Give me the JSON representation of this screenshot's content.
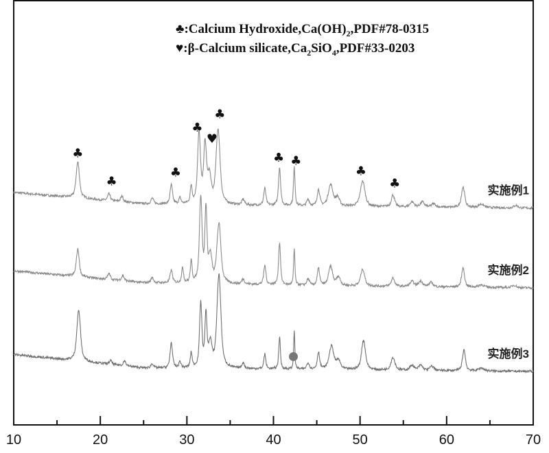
{
  "chart_data": {
    "type": "line",
    "title": "",
    "xlabel": "",
    "ylabel": "",
    "xlim": [
      10,
      70
    ],
    "ylim": [
      0,
      100
    ],
    "x_ticks": [
      10,
      20,
      30,
      40,
      50,
      60,
      70
    ],
    "x_minor_ticks": [
      15,
      25,
      35,
      45,
      55,
      65
    ],
    "y_ticks_shown": false,
    "grid": false,
    "line_color": "#8a8a8a",
    "legend": {
      "placement": "top-right",
      "entries": [
        {
          "symbol": "♣",
          "text": ":Calcium Hydroxide,Ca(OH)",
          "sub": "2",
          "text2": ",PDF#78-0315"
        },
        {
          "symbol": "♥",
          "text": ":β-Calcium silicate,Ca",
          "sub": "2",
          "text2": "SiO",
          "sub2": "4",
          "text3": ",PDF#33-0203"
        }
      ]
    },
    "series": [
      {
        "name": "实施例1",
        "baseline": [
          [
            10,
            54.8
          ],
          [
            25,
            52.1
          ],
          [
            45,
            51.5
          ],
          [
            70,
            51.1
          ]
        ],
        "peaks": [
          [
            17.4,
            8.5,
            0.25
          ],
          [
            21.0,
            1.6,
            0.2
          ],
          [
            22.5,
            1.3,
            0.2
          ],
          [
            26.0,
            1.3,
            0.2
          ],
          [
            28.2,
            4.5,
            0.18
          ],
          [
            29.2,
            1.4,
            0.15
          ],
          [
            30.5,
            4.0,
            0.14
          ],
          [
            31.4,
            16.5,
            0.22
          ],
          [
            32.1,
            13.5,
            0.22
          ],
          [
            32.6,
            6,
            0.25
          ],
          [
            33.6,
            17.5,
            0.3
          ],
          [
            36.5,
            1.3,
            0.2
          ],
          [
            39.0,
            4.0,
            0.17
          ],
          [
            40.7,
            9.0,
            0.16
          ],
          [
            42.4,
            9.0,
            0.12
          ],
          [
            44.0,
            1.5,
            0.2
          ],
          [
            45.2,
            3.8,
            0.2
          ],
          [
            46.6,
            5.0,
            0.35
          ],
          [
            47.4,
            2.0,
            0.3
          ],
          [
            50.3,
            6.0,
            0.35
          ],
          [
            53.8,
            2.8,
            0.25
          ],
          [
            56.0,
            1.2,
            0.3
          ],
          [
            57.2,
            1.2,
            0.3
          ],
          [
            58.5,
            0.8,
            0.3
          ],
          [
            61.9,
            4.8,
            0.25
          ],
          [
            64.0,
            0.8,
            0.4
          ],
          [
            68.0,
            0.6,
            0.3
          ]
        ]
      },
      {
        "name": "实施例2",
        "baseline": [
          [
            10,
            36.3
          ],
          [
            25,
            33.5
          ],
          [
            45,
            32.8
          ],
          [
            70,
            32.3
          ]
        ],
        "peaks": [
          [
            17.4,
            6.5,
            0.22
          ],
          [
            21.0,
            1.4,
            0.2
          ],
          [
            22.6,
            1.2,
            0.2
          ],
          [
            26.0,
            1.2,
            0.2
          ],
          [
            28.2,
            3.0,
            0.18
          ],
          [
            29.5,
            3.5,
            0.15
          ],
          [
            30.5,
            5.0,
            0.14
          ],
          [
            31.6,
            20.0,
            0.2
          ],
          [
            32.2,
            17.0,
            0.16
          ],
          [
            32.7,
            6,
            0.25
          ],
          [
            33.7,
            14.0,
            0.3
          ],
          [
            36.5,
            1.2,
            0.2
          ],
          [
            39.0,
            4.5,
            0.17
          ],
          [
            40.7,
            10.0,
            0.15
          ],
          [
            42.4,
            8.5,
            0.1
          ],
          [
            44.0,
            1.5,
            0.2
          ],
          [
            45.2,
            4.0,
            0.18
          ],
          [
            46.6,
            4.5,
            0.3
          ],
          [
            47.5,
            2.0,
            0.3
          ],
          [
            50.3,
            4.0,
            0.3
          ],
          [
            53.8,
            2.0,
            0.25
          ],
          [
            56.0,
            1.2,
            0.3
          ],
          [
            57.0,
            1.3,
            0.3
          ],
          [
            58.2,
            1.0,
            0.3
          ],
          [
            61.9,
            4.5,
            0.22
          ],
          [
            64.0,
            0.6,
            0.4
          ],
          [
            67.8,
            0.6,
            0.3
          ]
        ]
      },
      {
        "name": "实施例3",
        "baseline": [
          [
            10,
            16.6
          ],
          [
            25,
            13.4
          ],
          [
            45,
            13.0
          ],
          [
            70,
            12.6
          ]
        ],
        "peaks": [
          [
            17.5,
            12.0,
            0.28
          ],
          [
            21.2,
            0.9,
            0.2
          ],
          [
            22.8,
            1.2,
            0.2
          ],
          [
            26.0,
            1.0,
            0.2
          ],
          [
            28.2,
            6.0,
            0.18
          ],
          [
            29.2,
            1.5,
            0.15
          ],
          [
            30.5,
            3.5,
            0.14
          ],
          [
            31.6,
            15.0,
            0.18
          ],
          [
            32.2,
            12.0,
            0.16
          ],
          [
            32.7,
            5.5,
            0.25
          ],
          [
            33.7,
            22.0,
            0.3
          ],
          [
            36.5,
            1.3,
            0.2
          ],
          [
            39.0,
            3.5,
            0.15
          ],
          [
            40.7,
            7.5,
            0.13
          ],
          [
            42.4,
            9.0,
            0.09
          ],
          [
            44.0,
            1.5,
            0.2
          ],
          [
            45.2,
            4.0,
            0.18
          ],
          [
            46.7,
            5.5,
            0.35
          ],
          [
            47.5,
            2.0,
            0.3
          ],
          [
            50.4,
            7.0,
            0.3
          ],
          [
            53.8,
            3.0,
            0.3
          ],
          [
            56.0,
            1.2,
            0.3
          ],
          [
            57.0,
            1.2,
            0.3
          ],
          [
            58.3,
            1.0,
            0.3
          ],
          [
            62.0,
            5.0,
            0.22
          ],
          [
            64.0,
            0.7,
            0.4
          ]
        ]
      }
    ],
    "phase_markers": [
      {
        "symbol": "♣",
        "x": 17.4,
        "y": 64.2
      },
      {
        "symbol": "♣",
        "x": 21.3,
        "y": 57.6
      },
      {
        "symbol": "♣",
        "x": 28.7,
        "y": 59.7
      },
      {
        "symbol": "♣",
        "x": 31.2,
        "y": 70.3
      },
      {
        "symbol": "♥",
        "x": 32.9,
        "y": 67.6
      },
      {
        "symbol": "♣",
        "x": 33.8,
        "y": 73.4
      },
      {
        "symbol": "♣",
        "x": 40.6,
        "y": 63.2
      },
      {
        "symbol": "♣",
        "x": 42.6,
        "y": 62.4
      },
      {
        "symbol": "♣",
        "x": 50.1,
        "y": 60.0
      },
      {
        "symbol": "♣",
        "x": 54.0,
        "y": 57.1
      }
    ],
    "dot_marker": {
      "x": 42.3,
      "y": 16.1,
      "color": "#777777"
    }
  }
}
